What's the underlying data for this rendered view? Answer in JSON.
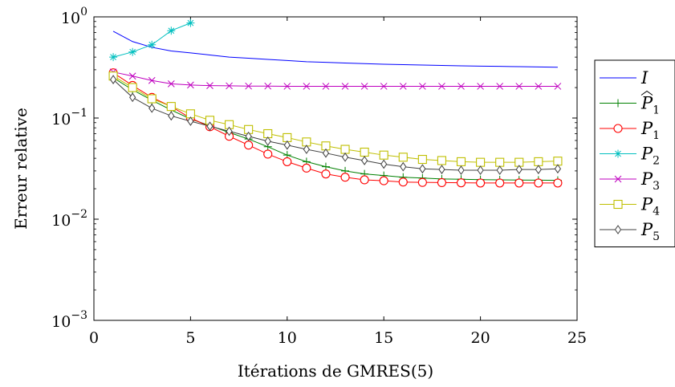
{
  "chart_data": {
    "type": "line",
    "title": "",
    "xlabel": "Itérations de GMRES(5)",
    "ylabel": "Erreur relative",
    "xlim": [
      0,
      25
    ],
    "ylim": [
      0.001,
      1
    ],
    "yscale": "log",
    "x_ticks": [
      0,
      5,
      10,
      15,
      20,
      25
    ],
    "x_tick_labels": [
      "0",
      "5",
      "10",
      "15",
      "20",
      "25"
    ],
    "y_ticks": [
      0.001,
      0.01,
      0.1,
      1
    ],
    "y_tick_labels": [
      {
        "base": "10",
        "exp": "−3"
      },
      {
        "base": "10",
        "exp": "−2"
      },
      {
        "base": "10",
        "exp": "−1"
      },
      {
        "base": "10",
        "exp": "0"
      }
    ],
    "grid": false,
    "legend_position": "outside-right",
    "series": [
      {
        "name": "I",
        "sub": "",
        "hat": false,
        "color": "#0000ff",
        "marker": "none",
        "x": [
          1,
          2,
          3,
          4,
          5,
          6,
          7,
          8,
          9,
          10,
          11,
          12,
          13,
          14,
          15,
          16,
          17,
          18,
          19,
          20,
          21,
          22,
          23,
          24
        ],
        "y": [
          0.72,
          0.57,
          0.5,
          0.46,
          0.44,
          0.42,
          0.4,
          0.39,
          0.38,
          0.37,
          0.36,
          0.355,
          0.35,
          0.345,
          0.34,
          0.337,
          0.334,
          0.331,
          0.328,
          0.326,
          0.324,
          0.322,
          0.32,
          0.318
        ]
      },
      {
        "name": "P",
        "sub": "1",
        "hat": true,
        "color": "#008000",
        "marker": "plus",
        "x": [
          1,
          2,
          3,
          4,
          5,
          6,
          7,
          8,
          9,
          10,
          11,
          12,
          13,
          14,
          15,
          16,
          17,
          18,
          19,
          20,
          21,
          22,
          23,
          24
        ],
        "y": [
          0.25,
          0.19,
          0.15,
          0.12,
          0.098,
          0.084,
          0.072,
          0.062,
          0.052,
          0.043,
          0.037,
          0.033,
          0.03,
          0.028,
          0.027,
          0.026,
          0.0255,
          0.025,
          0.0248,
          0.0246,
          0.0245,
          0.0244,
          0.0243,
          0.0242
        ]
      },
      {
        "name": "P",
        "sub": "1",
        "hat": false,
        "color": "#ff0000",
        "marker": "circle",
        "x": [
          1,
          2,
          3,
          4,
          5,
          6,
          7,
          8,
          9,
          10,
          11,
          12,
          13,
          14,
          15,
          16,
          17,
          18,
          19,
          20,
          21,
          22,
          23,
          24
        ],
        "y": [
          0.28,
          0.21,
          0.16,
          0.13,
          0.1,
          0.082,
          0.066,
          0.054,
          0.044,
          0.037,
          0.032,
          0.028,
          0.026,
          0.0245,
          0.024,
          0.0233,
          0.0231,
          0.023,
          0.0229,
          0.0228,
          0.0228,
          0.0228,
          0.0228,
          0.0228
        ]
      },
      {
        "name": "P",
        "sub": "2",
        "hat": false,
        "color": "#00bfbf",
        "marker": "star",
        "x": [
          1,
          2,
          3,
          4,
          5
        ],
        "y": [
          0.4,
          0.45,
          0.53,
          0.73,
          0.87
        ]
      },
      {
        "name": "P",
        "sub": "3",
        "hat": false,
        "color": "#bf00bf",
        "marker": "x",
        "x": [
          1,
          2,
          3,
          4,
          5,
          6,
          7,
          8,
          9,
          10,
          11,
          12,
          13,
          14,
          15,
          16,
          17,
          18,
          19,
          20,
          21,
          22,
          23,
          24
        ],
        "y": [
          0.285,
          0.26,
          0.235,
          0.218,
          0.212,
          0.209,
          0.208,
          0.207,
          0.207,
          0.206,
          0.206,
          0.206,
          0.206,
          0.206,
          0.206,
          0.206,
          0.206,
          0.206,
          0.206,
          0.206,
          0.206,
          0.206,
          0.206,
          0.206
        ]
      },
      {
        "name": "P",
        "sub": "4",
        "hat": false,
        "color": "#bfbf00",
        "marker": "square",
        "x": [
          1,
          2,
          3,
          4,
          5,
          6,
          7,
          8,
          9,
          10,
          11,
          12,
          13,
          14,
          15,
          16,
          17,
          18,
          19,
          20,
          21,
          22,
          23,
          24
        ],
        "y": [
          0.26,
          0.2,
          0.155,
          0.13,
          0.11,
          0.095,
          0.086,
          0.077,
          0.07,
          0.064,
          0.058,
          0.053,
          0.049,
          0.046,
          0.043,
          0.041,
          0.039,
          0.038,
          0.037,
          0.0365,
          0.0365,
          0.0365,
          0.037,
          0.0375
        ]
      },
      {
        "name": "P",
        "sub": "5",
        "hat": false,
        "color": "#404040",
        "marker": "diamond",
        "x": [
          1,
          2,
          3,
          4,
          5,
          6,
          7,
          8,
          9,
          10,
          11,
          12,
          13,
          14,
          15,
          16,
          17,
          18,
          19,
          20,
          21,
          22,
          23,
          24
        ],
        "y": [
          0.24,
          0.16,
          0.125,
          0.105,
          0.093,
          0.083,
          0.074,
          0.066,
          0.059,
          0.054,
          0.049,
          0.045,
          0.041,
          0.038,
          0.035,
          0.033,
          0.0315,
          0.031,
          0.0305,
          0.0305,
          0.0305,
          0.031,
          0.031,
          0.0315
        ]
      }
    ]
  }
}
